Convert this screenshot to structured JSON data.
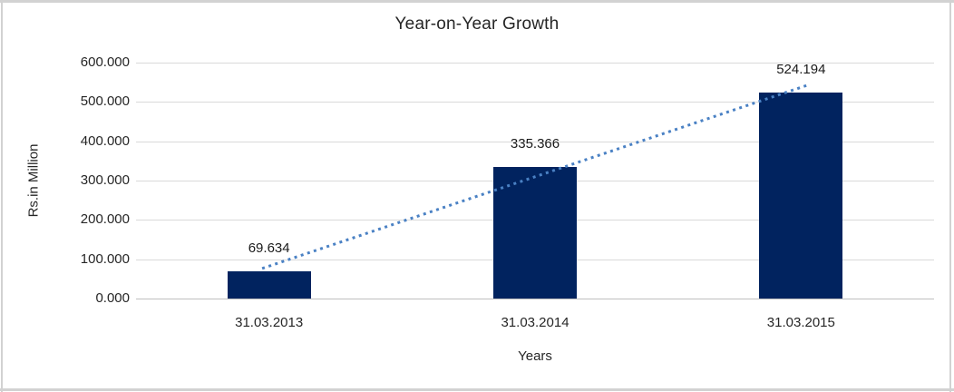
{
  "chart_data": {
    "type": "bar",
    "title": "Year-on-Year Growth",
    "xlabel": "Years",
    "ylabel": "Rs.in Million",
    "categories": [
      "31.03.2013",
      "31.03.2014",
      "31.03.2015"
    ],
    "values": [
      69.634,
      335.366,
      524.194
    ],
    "data_labels": [
      "69.634",
      "335.366",
      "524.194"
    ],
    "ylim": [
      0,
      600
    ],
    "ytick_step": 100,
    "ytick_labels": [
      "0.000",
      "100.000",
      "200.000",
      "300.000",
      "400.000",
      "500.000",
      "600.000"
    ],
    "grid": true,
    "legend": false,
    "colors": {
      "bar": "#01235f",
      "trendline": "#4a81c4",
      "gridline": "#d9d9d9",
      "axis_line": "#bfbfbf",
      "text": "#262626",
      "frame_border": "#d2d2d2",
      "background": "#ffffff"
    },
    "trendline": {
      "type": "linear",
      "style": "dotted",
      "start_value": 82.4,
      "end_value": 537.1
    }
  }
}
